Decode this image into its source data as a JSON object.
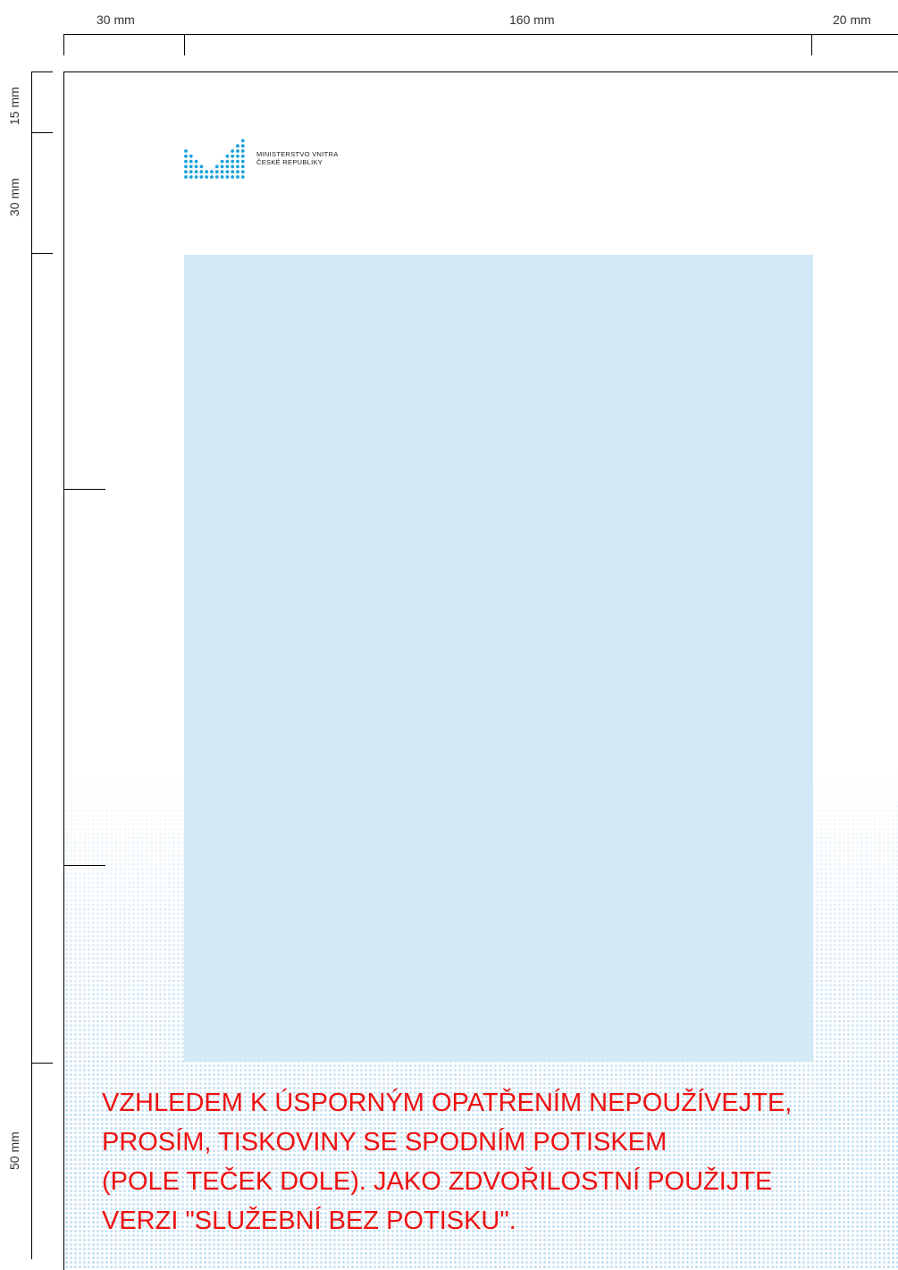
{
  "ruler_top": {
    "left": "30 mm",
    "middle": "160 mm",
    "right": "20 mm"
  },
  "ruler_side": {
    "top": "15 mm",
    "second": "30 mm",
    "bottom": "50 mm"
  },
  "logo": {
    "line1": "MINISTERSTVO VNITRA",
    "line2": "ČESKÉ REPUBLIKY",
    "color": "#1aa0dc"
  },
  "content_area_color": "#d3e9f5",
  "notice": {
    "color": "#ee1111",
    "lines": [
      "VZHLEDEM K ÚSPORNÝM OPATŘENÍM NEPOUŽÍVEJTE,",
      "PROSÍM, TISKOVINY SE SPODNÍM POTISKEM",
      "(POLE TEČEK DOLE). JAKO ZDVOŘILOSTNÍ POUŽIJTE",
      "VERZI \"SLUŽEBNÍ BEZ POTISKU\"."
    ]
  }
}
